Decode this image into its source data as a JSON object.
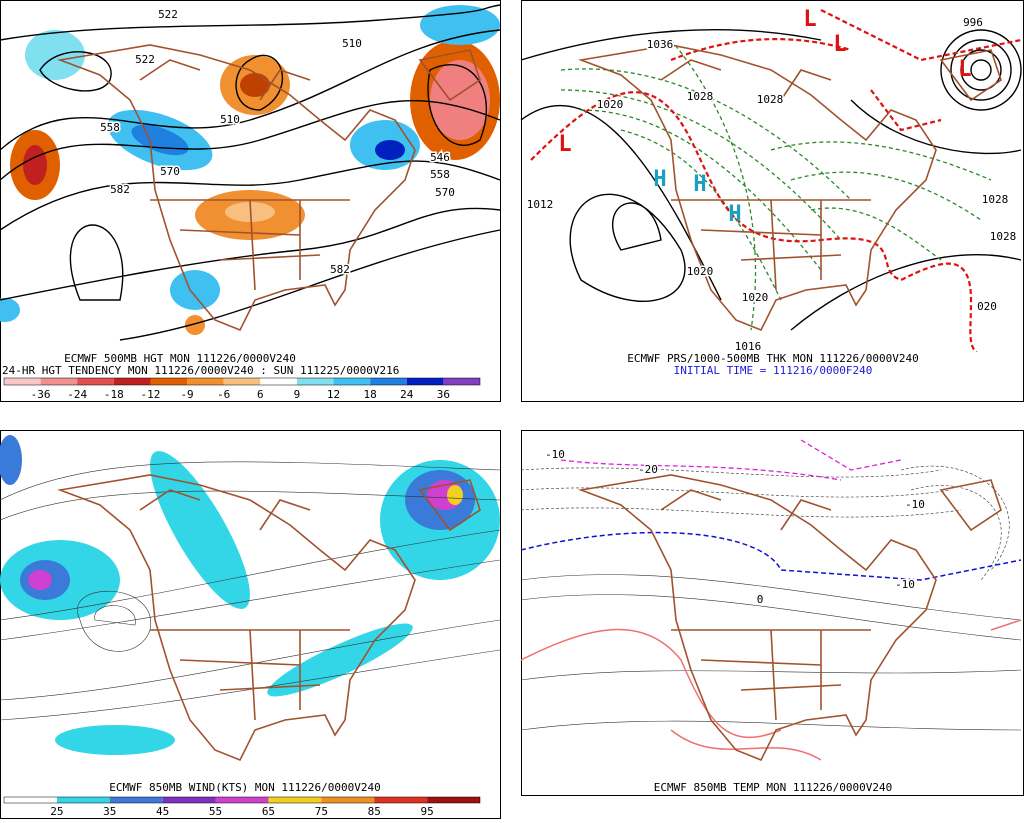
{
  "panels": [
    {
      "captions": [
        "ECMWF 500MB HGT MON 111226/0000V240",
        "24-HR HGT TENDENCY MON 111226/0000V240 : SUN 111225/0000V216"
      ],
      "colorbar": [
        "-36",
        "-24",
        "-18",
        "-12",
        "-9",
        "-6",
        "6",
        "9",
        "12",
        "18",
        "24",
        "36"
      ],
      "contour_labels": [
        "522",
        "510",
        "510",
        "522",
        "558",
        "570",
        "582",
        "546",
        "558",
        "570",
        "582"
      ]
    },
    {
      "captions": [
        "ECMWF PRS/1000-500MB THK MON 111226/0000V240",
        "INITIAL TIME = 111216/0000F240"
      ],
      "contour_labels": [
        "996",
        "1036",
        "1020",
        "1028",
        "1028",
        "1012",
        "1028",
        "1028",
        "1020",
        "1020",
        "020",
        "1016"
      ],
      "centers": [
        "L",
        "L",
        "L",
        "H",
        "H",
        "H",
        "L"
      ]
    },
    {
      "captions": [
        "ECMWF 850MB WIND(KTS) MON 111226/0000V240"
      ],
      "colorbar": [
        "25",
        "35",
        "45",
        "55",
        "65",
        "75",
        "85",
        "95"
      ]
    },
    {
      "captions": [
        "ECMWF 850MB TEMP MON 111226/0000V240"
      ],
      "contour_labels": [
        "-10",
        "-20",
        "-10",
        "0",
        "-10"
      ]
    }
  ]
}
